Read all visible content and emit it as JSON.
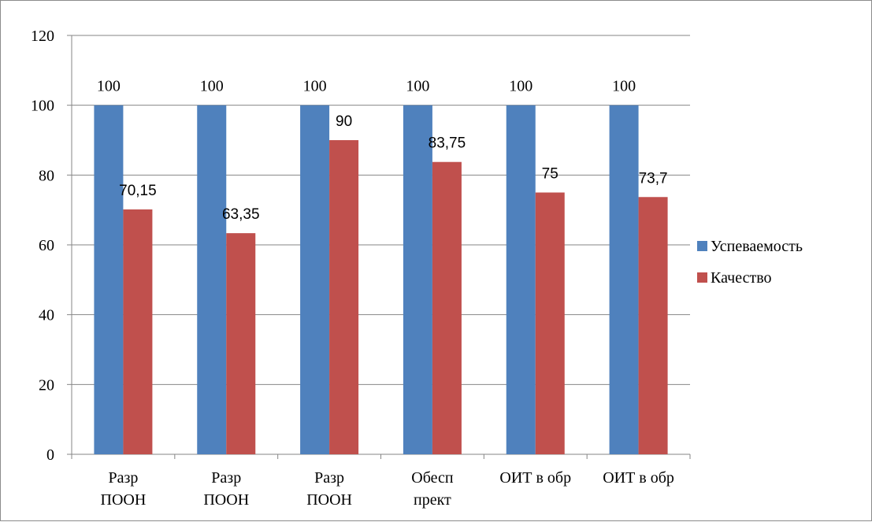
{
  "chart_data": {
    "type": "bar",
    "categories": [
      "Разр\nПООН",
      "Разр\nПООН",
      "Разр\nПООН",
      "Обесп\nпрект",
      "ОИТ в обр",
      "ОИТ в обр"
    ],
    "series": [
      {
        "name": "Успеваемость",
        "color": "#4f81bd",
        "values": [
          100,
          100,
          100,
          100,
          100,
          100
        ],
        "labels": [
          "100",
          "100",
          "100",
          "100",
          "100",
          "100"
        ]
      },
      {
        "name": "Качество",
        "color": "#c0504d",
        "values": [
          70.15,
          63.35,
          90,
          83.75,
          75,
          73.7
        ],
        "labels": [
          "70,15",
          "63,35",
          "90",
          "83,75",
          "75",
          "73,7"
        ]
      }
    ],
    "ylim": [
      0,
      120
    ],
    "yticks": [
      0,
      20,
      40,
      60,
      80,
      100,
      120
    ],
    "grid": true,
    "legend": "right"
  }
}
